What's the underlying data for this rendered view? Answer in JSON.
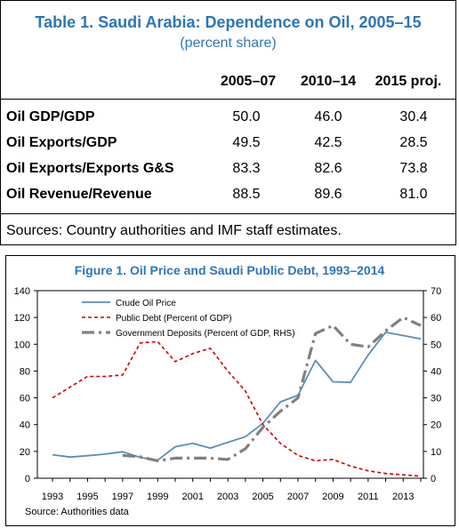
{
  "table": {
    "title": "Table 1. Saudi Arabia: Dependence on Oil, 2005–15",
    "subtitle": "(percent share)",
    "columns": [
      "2005–07",
      "2010–14",
      "2015 proj."
    ],
    "rows": [
      {
        "label": "Oil GDP/GDP",
        "values": [
          "50.0",
          "46.0",
          "30.4"
        ]
      },
      {
        "label": "Oil Exports/GDP",
        "values": [
          "49.5",
          "42.5",
          "28.5"
        ]
      },
      {
        "label": "Oil Exports/Exports G&S",
        "values": [
          "83.3",
          "82.6",
          "73.8"
        ]
      },
      {
        "label": "Oil Revenue/Revenue",
        "values": [
          "88.5",
          "89.6",
          "81.0"
        ]
      }
    ],
    "source": "Sources: Country authorities and IMF staff estimates."
  },
  "figure": {
    "title": "Figure 1. Oil Price and Saudi Public Debt, 1993–2014",
    "source": "Source: Authorities data"
  },
  "chart_data": {
    "type": "line",
    "x": [
      1993,
      1994,
      1995,
      1996,
      1997,
      1998,
      1999,
      2000,
      2001,
      2002,
      2003,
      2004,
      2005,
      2006,
      2007,
      2008,
      2009,
      2010,
      2011,
      2012,
      2013,
      2014
    ],
    "x_tick_labels": [
      "1993",
      "1995",
      "1997",
      "1999",
      "2001",
      "2003",
      "2005",
      "2007",
      "2009",
      "2011",
      "2013"
    ],
    "y_left_ticks": [
      "0",
      "20",
      "40",
      "60",
      "80",
      "100",
      "120",
      "140"
    ],
    "y_right_ticks": [
      "0",
      "10",
      "20",
      "30",
      "40",
      "50",
      "60",
      "70"
    ],
    "ylim_left": [
      0,
      140
    ],
    "ylim_right": [
      0,
      70
    ],
    "grid": false,
    "legend_position": "top-left",
    "series": [
      {
        "name": "Crude Oil Price",
        "axis": "left",
        "color": "#5b8db8",
        "style": "solid",
        "values": [
          17.5,
          15.8,
          16.8,
          18.0,
          19.8,
          15.5,
          13.5,
          23.5,
          26.0,
          22.5,
          26.8,
          31.0,
          41.0,
          57.0,
          62.0,
          88.0,
          72.0,
          71.5,
          92.0,
          109.0,
          106.5,
          104.0
        ]
      },
      {
        "name": "Public Debt (Percent of GDP)",
        "axis": "left",
        "color": "#cc0000",
        "style": "dashed",
        "values": [
          60,
          68,
          76,
          76,
          77,
          101,
          102,
          87,
          93,
          97,
          80,
          65,
          40,
          26,
          17,
          13,
          14,
          9,
          5.5,
          3.5,
          2.5,
          1.5
        ]
      },
      {
        "name": "Government Deposits (Percent of GDP, RHS)",
        "axis": "right",
        "color": "#808080",
        "style": "dashdot",
        "values": [
          null,
          null,
          null,
          null,
          8.5,
          8.0,
          6.5,
          7.5,
          7.5,
          7.5,
          7.0,
          11.0,
          19.0,
          25.0,
          30.0,
          54.0,
          57.0,
          50.0,
          49.0,
          55.0,
          60.0,
          57.0
        ]
      }
    ]
  }
}
